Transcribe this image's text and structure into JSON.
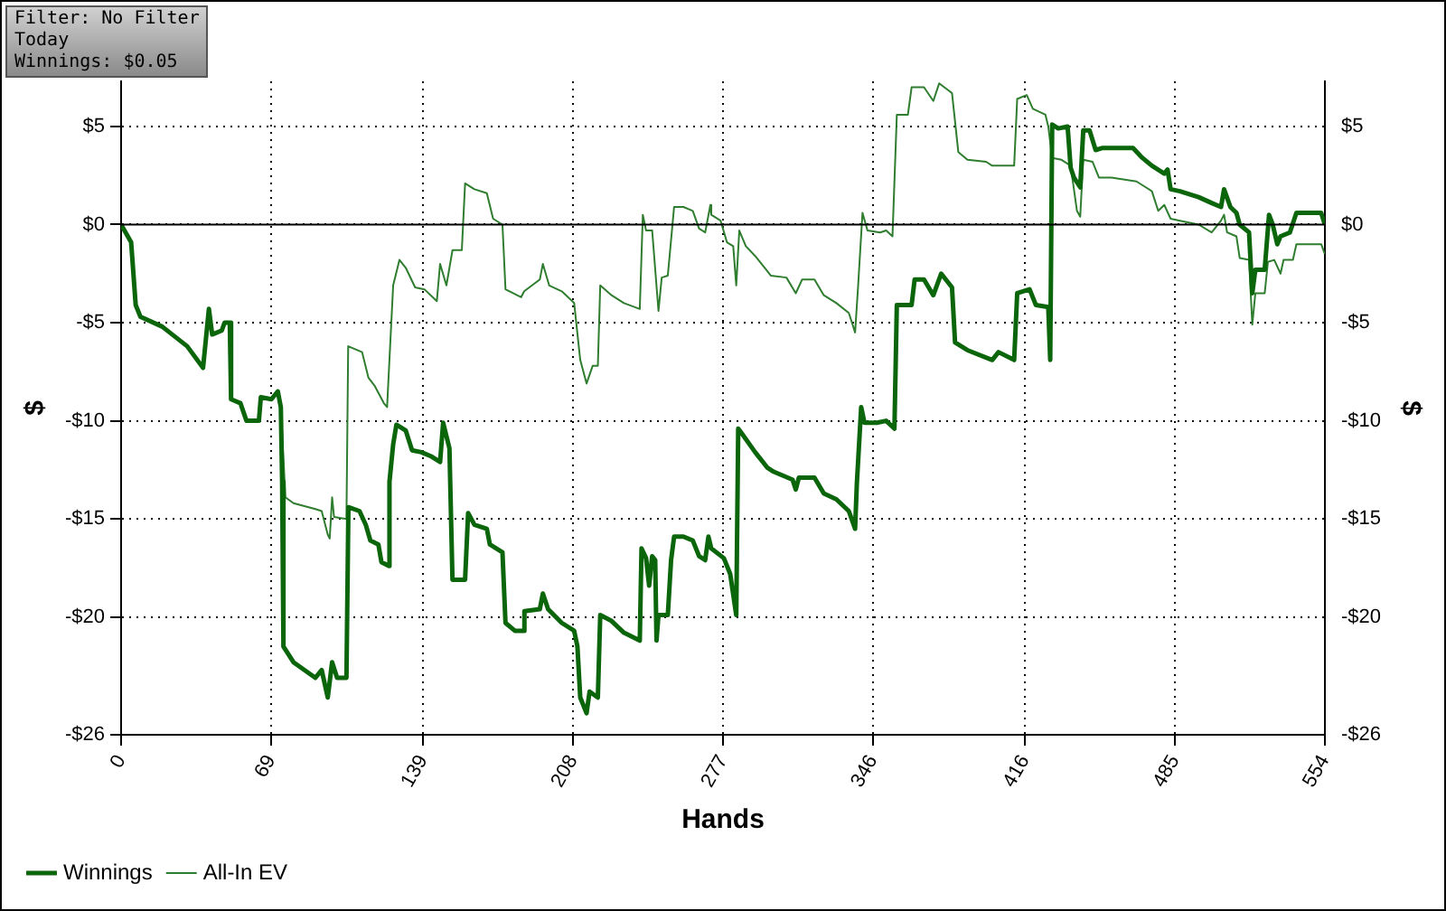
{
  "chart_data": {
    "type": "line",
    "xlabel": "Hands",
    "ylabel": "$",
    "y2label": "$",
    "annotations": [
      "Filter: No Filter",
      "Today",
      "Winnings: $0.05"
    ],
    "xlim": [
      0,
      554
    ],
    "xticks": [
      0,
      69,
      139,
      208,
      277,
      346,
      416,
      485,
      554
    ],
    "ylim": [
      -26,
      7.3
    ],
    "yticks": [
      {
        "value": 5,
        "label": "$5"
      },
      {
        "value": 0,
        "label": "$0"
      },
      {
        "value": -5,
        "label": "-$5"
      },
      {
        "value": -10,
        "label": "-$10"
      },
      {
        "value": -15,
        "label": "-$15"
      },
      {
        "value": -20,
        "label": "-$20"
      },
      {
        "value": -26,
        "label": "-$26"
      }
    ],
    "y2lim": [
      -26,
      7.3
    ],
    "y2ticks": [
      {
        "value": 5,
        "label": "$5"
      },
      {
        "value": 0,
        "label": "$0"
      },
      {
        "value": -5,
        "label": "-$5"
      },
      {
        "value": -10,
        "label": "-$10"
      },
      {
        "value": -15,
        "label": "-$15"
      },
      {
        "value": -20,
        "label": "-$20"
      },
      {
        "value": -26,
        "label": "-$26"
      }
    ],
    "grid": true,
    "legend": "bottom left",
    "marker": "none",
    "line_style": "solid",
    "ref_lines": [
      {
        "axis": "y",
        "value": 0,
        "color": "#000000"
      }
    ],
    "series": [
      {
        "name": "Winnings",
        "color": "#0b650b",
        "x": [
          0,
          4.6,
          6.7,
          8.9,
          18.9,
          30.4,
          37.7,
          40.4,
          41.9,
          46.3,
          47.6,
          50,
          50.6,
          54.9,
          57.7,
          63.4,
          64.3,
          69.2,
          72.1,
          73.5,
          74.1,
          74.7,
          79.3,
          89.4,
          92.3,
          95.1,
          97.1,
          99.4,
          103.7,
          104.6,
          109.7,
          112.6,
          114.7,
          118.4,
          119.8,
          123.3,
          123.5,
          125.2,
          126.7,
          131,
          133.9,
          138.2,
          142.5,
          146.8,
          148.2,
          151.1,
          152.5,
          158.3,
          159.7,
          162.6,
          168.3,
          169.7,
          175.5,
          176.9,
          181.2,
          185.5,
          185.6,
          192.7,
          194.1,
          196.5,
          202.8,
          208.5,
          210,
          211.3,
          214.2,
          215.6,
          219.4,
          220.5,
          225.7,
          231.4,
          238.7,
          239.5,
          241.6,
          243,
          244.4,
          245.8,
          246.4,
          247.3,
          251.6,
          253.1,
          254.5,
          258.8,
          263.1,
          266,
          268.8,
          270.3,
          271.6,
          277.4,
          280.3,
          283.1,
          284,
          286,
          291.8,
          297.5,
          300.4,
          309,
          310.5,
          311.9,
          319.1,
          323.4,
          329.2,
          334.9,
          337.8,
          338.6,
          340.6,
          342.1,
          347.8,
          352.1,
          355.9,
          357,
          363.8,
          365.2,
          369.5,
          373.8,
          377.4,
          382.4,
          383.8,
          389.5,
          400.9,
          403.8,
          411,
          412.4,
          418.1,
          421,
          426.7,
          427.6,
          428.5,
          431.3,
          435.6,
          437,
          438.5,
          441.4,
          442.8,
          445.7,
          448.5,
          451.4,
          457.1,
          465.7,
          470,
          474.4,
          480.1,
          481.6,
          483,
          487.3,
          495.9,
          501.9,
          506.2,
          507.6,
          510.5,
          513.3,
          514.8,
          519.1,
          520.6,
          522,
          526.3,
          528.3,
          530,
          532.1,
          533.6,
          537.9,
          540.9,
          552.3,
          554
        ],
        "values": [
          0,
          -0.9,
          -4.1,
          -4.7,
          -5.2,
          -6.2,
          -7.3,
          -4.3,
          -5.6,
          -5.4,
          -5.0,
          -5.0,
          -8.9,
          -9.1,
          -10.0,
          -10.0,
          -8.8,
          -8.9,
          -8.5,
          -9.3,
          -13.1,
          -21.5,
          -22.3,
          -23.1,
          -22.7,
          -24.1,
          -22.3,
          -23.1,
          -23.1,
          -14.4,
          -14.6,
          -15.3,
          -16.1,
          -16.3,
          -17.2,
          -17.4,
          -13.1,
          -11.2,
          -10.2,
          -10.5,
          -11.5,
          -11.6,
          -11.8,
          -12.1,
          -10.1,
          -11.4,
          -18.1,
          -18.1,
          -14.7,
          -15.3,
          -15.5,
          -16.3,
          -16.7,
          -20.3,
          -20.7,
          -20.7,
          -19.7,
          -19.6,
          -18.8,
          -19.6,
          -20.3,
          -20.7,
          -21.5,
          -24.1,
          -24.9,
          -23.8,
          -24.1,
          -19.9,
          -20.2,
          -20.8,
          -21.2,
          -16.5,
          -17.0,
          -18.4,
          -16.9,
          -17.1,
          -21.2,
          -19.9,
          -19.9,
          -17.1,
          -15.9,
          -15.9,
          -16.1,
          -16.9,
          -17.1,
          -15.9,
          -16.5,
          -17.0,
          -17.8,
          -19.9,
          -10.4,
          -10.7,
          -11.6,
          -12.4,
          -12.6,
          -13.0,
          -13.5,
          -12.9,
          -12.9,
          -13.7,
          -14.0,
          -14.6,
          -15.5,
          -13.2,
          -9.3,
          -10.1,
          -10.1,
          -10.0,
          -10.4,
          -4.1,
          -4.1,
          -2.8,
          -2.8,
          -3.6,
          -2.5,
          -3.2,
          -6.0,
          -6.4,
          -6.9,
          -6.5,
          -6.9,
          -3.5,
          -3.3,
          -4.1,
          -4.2,
          -6.9,
          5.1,
          4.9,
          5.0,
          2.9,
          2.4,
          1.9,
          4.8,
          4.8,
          3.8,
          3.9,
          3.9,
          3.9,
          3.4,
          3.0,
          2.6,
          2.8,
          1.8,
          1.7,
          1.4,
          1.1,
          0.9,
          1.8,
          0.9,
          0.6,
          0.0,
          -0.4,
          -3.5,
          -2.3,
          -2.3,
          0.5,
          0.0,
          -1.0,
          -0.6,
          -0.4,
          0.6,
          0.6,
          0.0
        ]
      },
      {
        "name": "All-In EV",
        "color": "#2f7d2f",
        "x": [
          0,
          4.6,
          6.7,
          8.9,
          18.9,
          30.4,
          37.7,
          40.4,
          41.9,
          46.3,
          47.6,
          50,
          50.6,
          54.9,
          57.7,
          63.4,
          64.3,
          69.2,
          72.1,
          73.5,
          75.6,
          79.3,
          89.4,
          92.3,
          95.1,
          96,
          97.1,
          98,
          103.7,
          104.5,
          110.9,
          113.8,
          116.6,
          120.9,
          122.4,
          125.2,
          128.1,
          131,
          135.3,
          139.6,
          145.3,
          146.8,
          149.7,
          152.5,
          156.8,
          158.3,
          162.6,
          168.3,
          171.2,
          175.5,
          176.9,
          184.1,
          185.5,
          192.7,
          194.1,
          197,
          202.8,
          208.5,
          211.3,
          214.2,
          217,
          219.4,
          220.5,
          225.7,
          231.4,
          238.7,
          240.1,
          241.6,
          244.4,
          247.3,
          248.8,
          251.6,
          254.5,
          258.8,
          263.1,
          266,
          268.8,
          271.2,
          271.6,
          275.9,
          278.8,
          281.7,
          283.1,
          284.5,
          287.5,
          291.8,
          299,
          306.2,
          310.5,
          313.4,
          319.1,
          323.4,
          329.2,
          334.9,
          337.8,
          339.2,
          341.2,
          343.5,
          349.3,
          352.1,
          355,
          357,
          362.1,
          363.8,
          369.5,
          373.8,
          376.5,
          382.4,
          385.3,
          389.5,
          398.1,
          400.9,
          411,
          412.4,
          416.8,
          419.6,
          425.4,
          426.7,
          428.5,
          432.8,
          437,
          439.9,
          441.4,
          442.8,
          447.1,
          450,
          455.8,
          467.3,
          474.4,
          477.3,
          480.1,
          483,
          487.3,
          495.9,
          501.9,
          506.2,
          507.6,
          509,
          513.3,
          514.8,
          519.1,
          520.6,
          522,
          526.3,
          527.8,
          530.7,
          533.6,
          535,
          539.3,
          540.9,
          552.3,
          554
        ],
        "values": [
          0,
          -0.9,
          -4.1,
          -4.7,
          -5.2,
          -6.2,
          -7.3,
          -4.3,
          -5.6,
          -5.4,
          -5.0,
          -5.0,
          -8.9,
          -9.1,
          -10.0,
          -10.0,
          -8.8,
          -8.9,
          -8.5,
          -9.3,
          -13.9,
          -14.2,
          -14.5,
          -14.6,
          -15.8,
          -16.0,
          -13.9,
          -14.9,
          -15.0,
          -6.2,
          -6.5,
          -7.8,
          -8.2,
          -9.1,
          -9.3,
          -3.1,
          -1.8,
          -2.2,
          -3.2,
          -3.3,
          -3.9,
          -2.0,
          -3.1,
          -1.3,
          -1.3,
          2.1,
          1.8,
          1.6,
          0.3,
          0.0,
          -3.3,
          -3.7,
          -3.4,
          -2.8,
          -2.0,
          -3.1,
          -3.4,
          -4.0,
          -6.9,
          -8.1,
          -7.2,
          -7.2,
          -3.1,
          -3.6,
          -4.0,
          -4.3,
          0.5,
          -0.3,
          -0.3,
          -4.4,
          -2.7,
          -2.6,
          0.9,
          0.9,
          0.7,
          -0.2,
          -0.4,
          1.0,
          0.5,
          0.2,
          -0.9,
          -1.1,
          -3.1,
          -0.3,
          -1.1,
          -1.6,
          -2.6,
          -2.7,
          -3.5,
          -2.8,
          -2.8,
          -3.6,
          -4.0,
          -4.5,
          -5.5,
          -3.1,
          0.6,
          -0.3,
          -0.4,
          -0.3,
          -0.6,
          5.6,
          5.6,
          7.0,
          7.0,
          6.3,
          7.2,
          6.7,
          3.7,
          3.3,
          3.2,
          3.0,
          3.0,
          6.4,
          6.6,
          5.9,
          5.6,
          5.0,
          3.4,
          3.3,
          3.0,
          0.7,
          0.4,
          3.3,
          3.2,
          2.4,
          2.4,
          2.2,
          1.7,
          0.7,
          1.0,
          0.3,
          0.2,
          0.0,
          -0.4,
          0.2,
          0.5,
          -0.4,
          -0.6,
          -1.7,
          -1.8,
          -5.1,
          -3.5,
          -3.5,
          -1.9,
          -1.8,
          -2.5,
          -1.8,
          -1.8,
          -1.0,
          -1.0,
          -1.5
        ]
      }
    ]
  }
}
